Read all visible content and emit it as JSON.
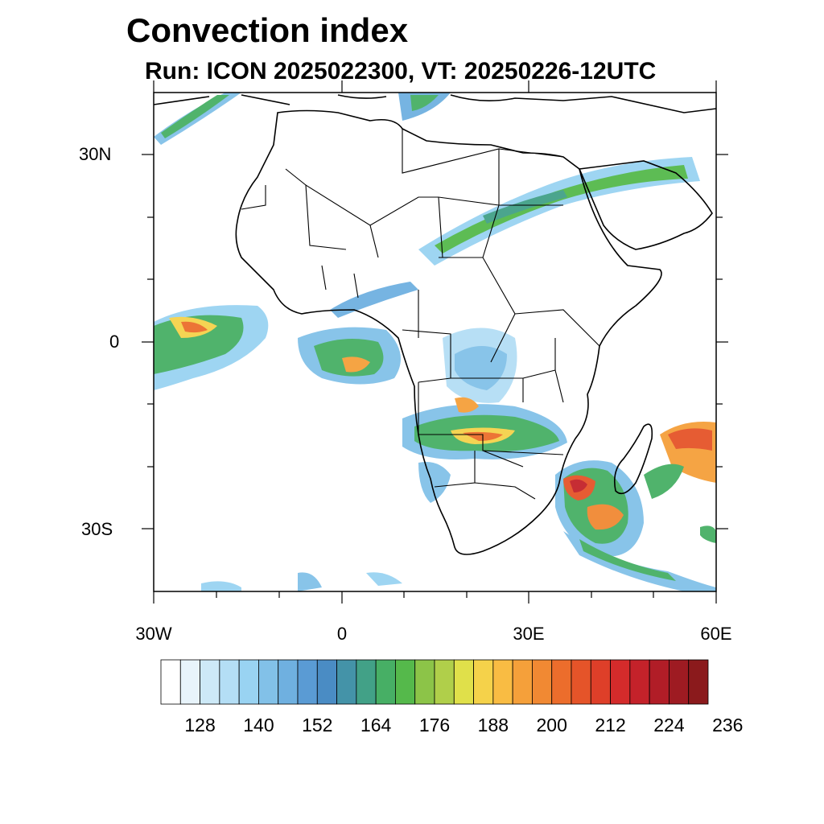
{
  "title": "Convection index",
  "subtitle": "Run: ICON 2025022300,  VT: 20250226-12UTC",
  "map": {
    "lon_range": [
      -30,
      60
    ],
    "lat_range": [
      -40,
      40
    ],
    "lat_ticks": [
      {
        "value": 30,
        "label": "30N"
      },
      {
        "value": 0,
        "label": "0"
      },
      {
        "value": -30,
        "label": "30S"
      }
    ],
    "lon_ticks": [
      {
        "value": -30,
        "label": "30W"
      },
      {
        "value": 0,
        "label": "0"
      },
      {
        "value": 30,
        "label": "30E"
      },
      {
        "value": 60,
        "label": "60E"
      }
    ]
  },
  "colorbar": {
    "colors": [
      "#ffffff",
      "#e8f4fb",
      "#cde9f7",
      "#b4def5",
      "#99d3f2",
      "#82c1e8",
      "#6fb0e0",
      "#5a9bd4",
      "#4a8cc4",
      "#4493a8",
      "#42a187",
      "#47af65",
      "#55b94b",
      "#8cc448",
      "#b0cf4a",
      "#e0e04a",
      "#f5d24a",
      "#f9bc43",
      "#f5a03a",
      "#f18933",
      "#ec6d2c",
      "#e55429",
      "#de3f29",
      "#d42b2b",
      "#c4222a",
      "#b11d27",
      "#9e1b22",
      "#8b1a1c"
    ],
    "labels": [
      "128",
      "140",
      "152",
      "164",
      "176",
      "188",
      "200",
      "212",
      "224",
      "236"
    ]
  }
}
